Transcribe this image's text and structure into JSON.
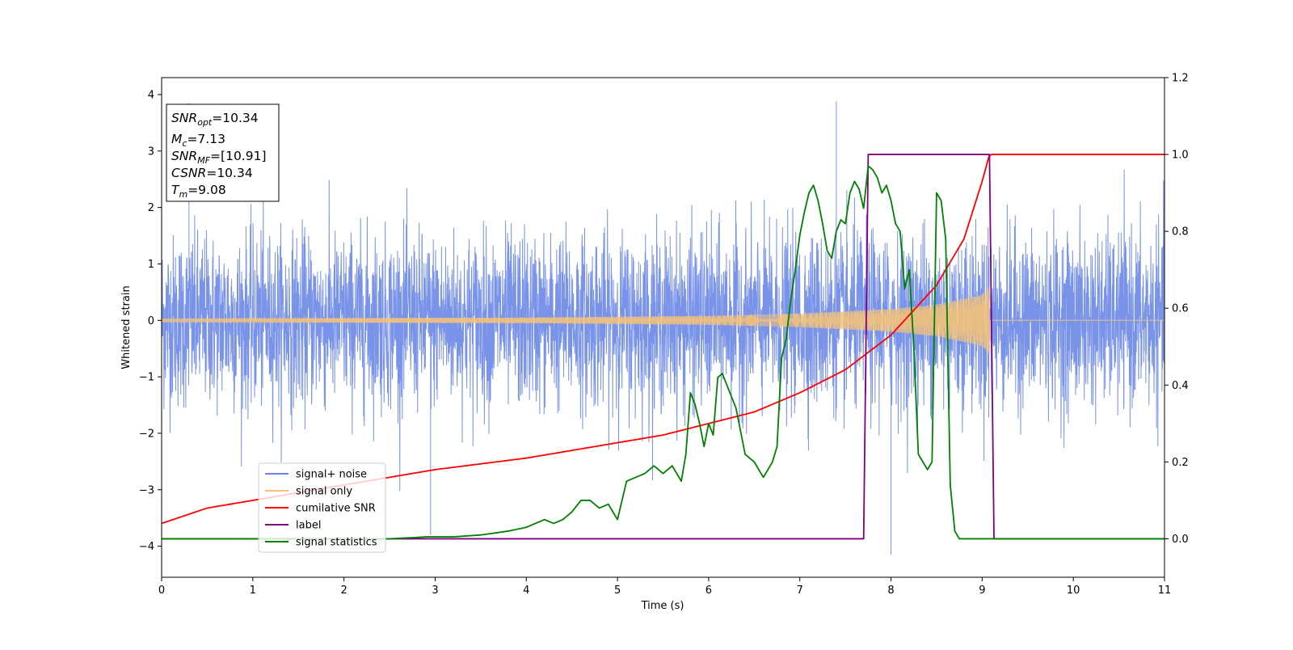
{
  "chart_data": {
    "type": "line",
    "xlabel": "Time (s)",
    "ylabel": "Whitened strain",
    "xlim": [
      0,
      11
    ],
    "ylim_left": [
      -4.55,
      4.3
    ],
    "ylim_right": [
      -0.1,
      1.2
    ],
    "x_ticks": [
      "0",
      "1",
      "2",
      "3",
      "4",
      "5",
      "6",
      "7",
      "8",
      "9",
      "10",
      "11"
    ],
    "y_ticks_left": [
      "4",
      "3",
      "2",
      "1",
      "0",
      "−1",
      "−2",
      "−3",
      "−4"
    ],
    "y_ticks_right": [
      "1.2",
      "1.0",
      "0.8",
      "0.6",
      "0.4",
      "0.2",
      "0.0"
    ],
    "grid": false,
    "legend": {
      "placement": "lower-left",
      "entries": [
        {
          "label": "signal+ noise",
          "color": "#6a87e6"
        },
        {
          "label": "signal only",
          "color": "#f6c27a"
        },
        {
          "label": "cumilative SNR",
          "color": "#ff0000"
        },
        {
          "label": "label",
          "color": "#800080"
        },
        {
          "label": "signal statistics",
          "color": "#008000"
        }
      ]
    },
    "annotation": {
      "lines": [
        {
          "main": "SNR",
          "sub": "opt",
          "rest": "=10.34"
        },
        {
          "main": "M",
          "sub": "c",
          "rest": "=7.13"
        },
        {
          "main": "SNR",
          "sub": "MF",
          "rest": "=[10.91]"
        },
        {
          "main": "CSNR",
          "sub": "",
          "rest": "=10.34"
        },
        {
          "main": "T",
          "sub": "m",
          "rest": "=9.08"
        }
      ]
    },
    "series": [
      {
        "name": "signal+ noise",
        "axis": "left",
        "color": "#6a87e6",
        "noise_sigma": 0.75,
        "x_start": 0,
        "x_end": 11,
        "notable_peaks": [
          [
            0.3,
            3.85
          ],
          [
            7.4,
            3.88
          ],
          [
            8.0,
            -4.15
          ],
          [
            2.95,
            -3.8
          ]
        ]
      },
      {
        "name": "signal only",
        "axis": "left",
        "color": "#f6c27a",
        "amplitude_envelope": {
          "x": [
            0,
            2,
            4,
            6,
            7,
            8,
            8.5,
            9.0,
            9.08
          ],
          "y": [
            0.03,
            0.04,
            0.05,
            0.08,
            0.12,
            0.2,
            0.28,
            0.45,
            0.6
          ]
        },
        "merger_time": 9.08
      },
      {
        "name": "cumilative SNR",
        "axis": "right",
        "color": "#ff0000",
        "x": [
          0,
          0.5,
          1,
          2,
          3,
          4,
          5,
          5.5,
          6,
          6.5,
          7,
          7.5,
          8,
          8.5,
          8.8,
          9.0,
          9.08,
          11
        ],
        "y": [
          0.04,
          0.08,
          0.1,
          0.14,
          0.18,
          0.21,
          0.25,
          0.27,
          0.3,
          0.33,
          0.38,
          0.44,
          0.53,
          0.66,
          0.78,
          0.93,
          1.0,
          1.0
        ]
      },
      {
        "name": "label",
        "axis": "right",
        "color": "#800080",
        "x": [
          0,
          7.7,
          7.75,
          9.08,
          9.13,
          11
        ],
        "y": [
          0,
          0,
          1,
          1,
          0,
          0
        ]
      },
      {
        "name": "signal statistics",
        "axis": "right",
        "color": "#008000",
        "x": [
          0,
          0.5,
          1,
          1.5,
          2,
          2.5,
          2.9,
          3.2,
          3.5,
          3.8,
          4.0,
          4.2,
          4.3,
          4.4,
          4.5,
          4.6,
          4.7,
          4.8,
          4.9,
          5.0,
          5.1,
          5.2,
          5.3,
          5.4,
          5.5,
          5.6,
          5.7,
          5.75,
          5.8,
          5.85,
          5.9,
          5.95,
          6.0,
          6.05,
          6.1,
          6.15,
          6.2,
          6.3,
          6.4,
          6.5,
          6.6,
          6.7,
          6.75,
          6.8,
          6.85,
          6.9,
          6.95,
          7.0,
          7.05,
          7.1,
          7.15,
          7.2,
          7.25,
          7.3,
          7.35,
          7.4,
          7.45,
          7.5,
          7.55,
          7.6,
          7.65,
          7.7,
          7.75,
          7.8,
          7.85,
          7.9,
          7.95,
          8.0,
          8.05,
          8.1,
          8.15,
          8.2,
          8.25,
          8.3,
          8.35,
          8.4,
          8.45,
          8.5,
          8.55,
          8.6,
          8.65,
          8.7,
          8.75,
          8.8,
          8.85,
          8.9,
          8.95,
          9.0,
          9.05,
          9.1,
          11
        ],
        "y": [
          0,
          0,
          0,
          0,
          0,
          0,
          0.005,
          0.005,
          0.01,
          0.02,
          0.03,
          0.05,
          0.04,
          0.05,
          0.07,
          0.1,
          0.1,
          0.08,
          0.09,
          0.05,
          0.15,
          0.16,
          0.17,
          0.19,
          0.17,
          0.19,
          0.15,
          0.22,
          0.38,
          0.35,
          0.3,
          0.24,
          0.3,
          0.27,
          0.42,
          0.43,
          0.4,
          0.34,
          0.22,
          0.2,
          0.16,
          0.2,
          0.24,
          0.47,
          0.52,
          0.62,
          0.7,
          0.79,
          0.85,
          0.9,
          0.92,
          0.88,
          0.82,
          0.75,
          0.73,
          0.8,
          0.83,
          0.82,
          0.9,
          0.93,
          0.91,
          0.86,
          0.97,
          0.96,
          0.94,
          0.9,
          0.92,
          0.88,
          0.82,
          0.8,
          0.65,
          0.7,
          0.5,
          0.22,
          0.2,
          0.18,
          0.2,
          0.9,
          0.88,
          0.78,
          0.14,
          0.02,
          0.0,
          0.0,
          0.0,
          0.0,
          0.0,
          0.0,
          0.0,
          0.0,
          0.0
        ]
      }
    ]
  }
}
